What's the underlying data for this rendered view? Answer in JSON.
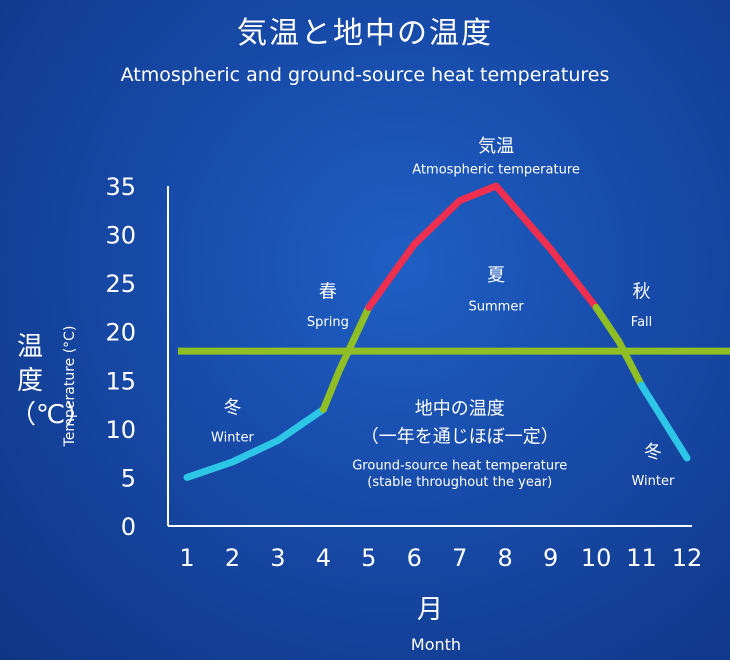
{
  "header": {
    "title": "気温と地中の温度",
    "subtitle": "Atmospheric and ground-source heat temperatures"
  },
  "axis_labels": {
    "y_jp": "温度（℃）",
    "y_en": "Temperature (°C)",
    "x_jp": "月",
    "x_en": "Month"
  },
  "colors": {
    "winter": "#2ec6e6",
    "spring_fall": "#8fbf24",
    "summer": "#ef2f4f",
    "ground": "#8fbf24",
    "axis": "#ffffff"
  },
  "chart_data": {
    "type": "line",
    "x": [
      1,
      2,
      3,
      4,
      5,
      6,
      7,
      8,
      9,
      10,
      11,
      12
    ],
    "xlabel": "月 Month",
    "ylabel": "温度（℃） Temperature (°C)",
    "xlim": [
      1,
      12
    ],
    "ylim": [
      0,
      35
    ],
    "yticks": [
      0,
      5,
      10,
      15,
      20,
      25,
      30,
      35
    ],
    "grid": false,
    "series": [
      {
        "name": "気温 Atmospheric temperature",
        "points": [
          [
            1,
            5
          ],
          [
            2,
            6.6
          ],
          [
            3,
            8.8
          ],
          [
            4,
            12
          ],
          [
            4.35,
            16
          ],
          [
            5,
            22.5
          ],
          [
            6,
            29
          ],
          [
            7,
            33.5
          ],
          [
            7.8,
            35
          ],
          [
            9,
            28.5
          ],
          [
            10,
            22.5
          ],
          [
            10.5,
            19
          ],
          [
            11,
            14.5
          ],
          [
            12,
            7
          ]
        ],
        "segments": [
          {
            "season": "winter",
            "from": 1,
            "to": 4
          },
          {
            "season": "spring",
            "from": 4,
            "to": 5
          },
          {
            "season": "summer",
            "from": 5,
            "to": 10
          },
          {
            "season": "fall",
            "from": 10,
            "to": 11
          },
          {
            "season": "winter",
            "from": 11,
            "to": 12
          }
        ]
      },
      {
        "name": "地中の温度 Ground-source heat temperature",
        "points": [
          [
            0.8,
            18
          ],
          [
            13.2,
            18
          ]
        ]
      }
    ],
    "annotations": [
      {
        "id": "atm-jp",
        "text": "気温",
        "x": 7.8,
        "y": 38.5,
        "size": "large"
      },
      {
        "id": "atm-en",
        "text": "Atmospheric temperature",
        "x": 7.8,
        "y": 36.3,
        "size": "small"
      },
      {
        "id": "spring-jp",
        "text": "春",
        "x": 4.1,
        "y": 23.5,
        "size": "large"
      },
      {
        "id": "spring-en",
        "text": "Spring",
        "x": 4.1,
        "y": 20.6,
        "size": "small"
      },
      {
        "id": "summer-jp",
        "text": "夏",
        "x": 7.8,
        "y": 25.2,
        "size": "large"
      },
      {
        "id": "summer-en",
        "text": "Summer",
        "x": 7.8,
        "y": 22.2,
        "size": "small"
      },
      {
        "id": "fall-jp",
        "text": "秋",
        "x": 11,
        "y": 23.5,
        "size": "large"
      },
      {
        "id": "fall-en",
        "text": "Fall",
        "x": 11,
        "y": 20.6,
        "size": "small"
      },
      {
        "id": "winter1-jp",
        "text": "冬",
        "x": 2,
        "y": 11.6,
        "size": "large"
      },
      {
        "id": "winter1-en",
        "text": "Winter",
        "x": 2,
        "y": 8.7,
        "size": "small"
      },
      {
        "id": "ground-jp1",
        "text": "地中の温度",
        "x": 7,
        "y": 11.5,
        "size": "large"
      },
      {
        "id": "ground-jp2",
        "text": "（一年を通じほぼ一定）",
        "x": 7,
        "y": 8.6,
        "size": "large"
      },
      {
        "id": "ground-en1",
        "text": "Ground-source heat temperature",
        "x": 7,
        "y": 5.8,
        "size": "small"
      },
      {
        "id": "ground-en2",
        "text": "(stable throughout the year)",
        "x": 7,
        "y": 4.1,
        "size": "small"
      },
      {
        "id": "winter2-jp",
        "text": "冬",
        "x": 11.25,
        "y": 7,
        "size": "large"
      },
      {
        "id": "winter2-en",
        "text": "Winter",
        "x": 11.25,
        "y": 4.2,
        "size": "small"
      }
    ]
  }
}
